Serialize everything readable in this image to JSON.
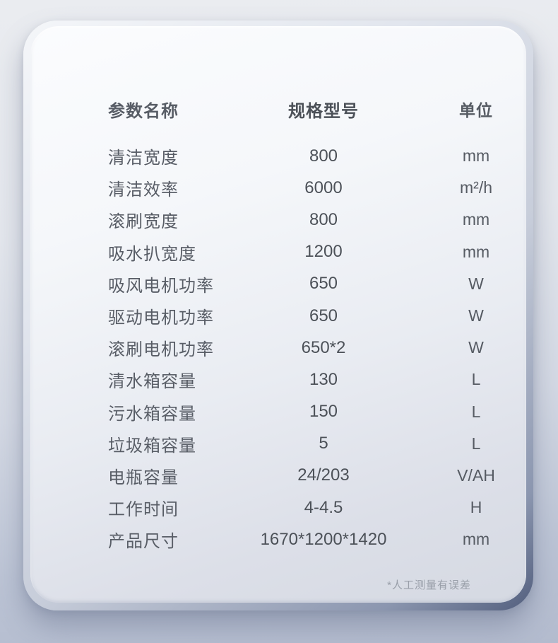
{
  "table": {
    "headers": {
      "name": "参数名称",
      "value": "规格型号",
      "unit": "单位"
    },
    "rows": [
      {
        "name": "清洁宽度",
        "value": "800",
        "unit": "mm"
      },
      {
        "name": "清洁效率",
        "value": "6000",
        "unit": "m²/h"
      },
      {
        "name": "滚刷宽度",
        "value": "800",
        "unit": "mm"
      },
      {
        "name": "吸水扒宽度",
        "value": "1200",
        "unit": "mm"
      },
      {
        "name": "吸风电机功率",
        "value": "650",
        "unit": "W"
      },
      {
        "name": "驱动电机功率",
        "value": "650",
        "unit": "W"
      },
      {
        "name": "滚刷电机功率",
        "value": "650*2",
        "unit": "W"
      },
      {
        "name": "清水箱容量",
        "value": "130",
        "unit": "L"
      },
      {
        "name": "污水箱容量",
        "value": "150",
        "unit": "L"
      },
      {
        "name": "垃圾箱容量",
        "value": "5",
        "unit": "L"
      },
      {
        "name": "电瓶容量",
        "value": "24/203",
        "unit": "V/AH"
      },
      {
        "name": "工作时间",
        "value": "4-4.5",
        "unit": "H"
      },
      {
        "name": "产品尺寸",
        "value": "1670*1200*1420",
        "unit": "mm"
      }
    ]
  },
  "footnote": "*人工测量有误差",
  "colors": {
    "header_text": "#43474e",
    "body_text": "#565b63",
    "footnote_text": "#999fa9",
    "card_top": "#fbfcfe",
    "card_bottom": "#d5d9e2",
    "background_top": "#eaecf0",
    "background_bottom": "#b3bbce"
  }
}
